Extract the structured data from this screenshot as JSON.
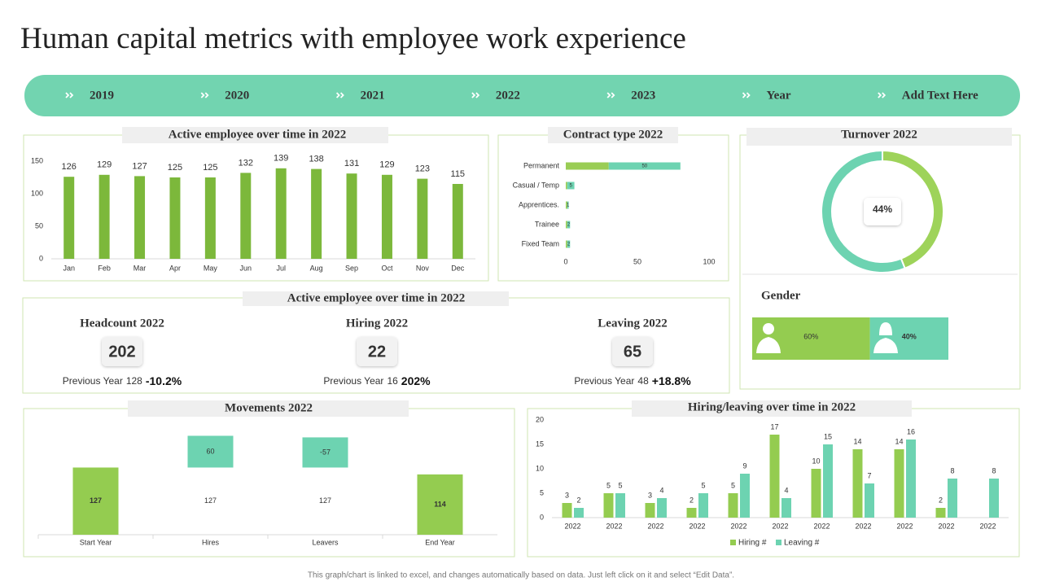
{
  "title": "Human capital metrics with employee work experience",
  "nav": [
    "2019",
    "2020",
    "2021",
    "2022",
    "2023",
    "Year",
    "Add Text Here"
  ],
  "chart_data": [
    {
      "type": "bar",
      "title": "Active employee over time in 2022",
      "categories": [
        "Jan",
        "Feb",
        "Mar",
        "Apr",
        "May",
        "Jun",
        "Jul",
        "Aug",
        "Sep",
        "Oct",
        "Nov",
        "Dec"
      ],
      "values": [
        126,
        129,
        127,
        125,
        125,
        132,
        139,
        138,
        131,
        129,
        123,
        115
      ],
      "color": "#7cb83b",
      "ylim": [
        0,
        150
      ],
      "yticks": [
        0,
        50,
        100,
        150
      ]
    },
    {
      "type": "hbar-stacked",
      "title": "Contract type 2022",
      "categories": [
        "Permanent",
        "Casual / Temp",
        "Apprentices.",
        "Trainee",
        "Fixed Team"
      ],
      "series": [
        {
          "color": "#9acd55",
          "values": [
            30,
            1,
            1,
            1,
            1
          ]
        },
        {
          "color": "#6dd3b1",
          "values": [
            50,
            5,
            1,
            2,
            2
          ]
        }
      ],
      "xlim": [
        0,
        100
      ],
      "xticks": [
        0,
        50,
        100
      ]
    },
    {
      "type": "donut",
      "title": "Turnover 2022",
      "values": [
        44,
        56
      ],
      "value_labels": [
        "44%",
        null
      ],
      "colors": [
        "#9ed35a",
        "#6dd3b1"
      ]
    },
    {
      "type": "bar-100",
      "title": "Gender",
      "series": [
        {
          "color": "#94cc50",
          "values": [
            60
          ],
          "value_labels": [
            "60%"
          ]
        },
        {
          "color": "#6dd3b1",
          "values": [
            40
          ],
          "value_labels": [
            "40%"
          ]
        }
      ],
      "xlim": [
        0,
        100
      ]
    },
    {
      "type": "waterfall",
      "title": "Movements 2022",
      "categories": [
        "Start Year",
        "Hires",
        "Leavers",
        "End Year"
      ],
      "values": [
        127,
        60,
        -57,
        114
      ],
      "base_values": [
        null,
        127,
        127,
        null
      ],
      "colors": [
        "#94cc50",
        "#6dd3b1",
        "#6dd3b1",
        "#94cc50"
      ],
      "ylim": [
        0,
        220
      ]
    },
    {
      "type": "grouped-bar",
      "title": "Hiring/leaving over time in 2022",
      "categories": [
        "2022",
        "2022",
        "2022",
        "2022",
        "2022",
        "2022",
        "2022",
        "2022",
        "2022",
        "2022",
        "2022"
      ],
      "series": [
        {
          "name": "Hiring #",
          "color": "#94cc50",
          "values": [
            3,
            5,
            3,
            2,
            5,
            17,
            10,
            14,
            14,
            2,
            null
          ]
        },
        {
          "name": "Leaving #",
          "color": "#6dd3b1",
          "values": [
            2,
            5,
            4,
            5,
            9,
            4,
            15,
            7,
            16,
            8,
            8
          ]
        }
      ],
      "ylim": [
        0,
        20
      ],
      "yticks": [
        0,
        5,
        10,
        15,
        20
      ],
      "legend": "bottom"
    }
  ],
  "kpis": {
    "title": "Active employee over time in 2022",
    "items": [
      {
        "label": "Headcount 2022",
        "value": 202,
        "previous_label": "Previous Year",
        "previous_value": 128,
        "change": "-10.2%"
      },
      {
        "label": "Hiring 2022",
        "value": 22,
        "previous_label": "Previous  Year",
        "previous_value": 16,
        "change": "202%"
      },
      {
        "label": "Leaving 2022",
        "value": 65,
        "previous_label": "Previous  Year",
        "previous_value": 48,
        "change": "+18.8%"
      }
    ]
  },
  "footer": "This graph/chart is linked to excel, and changes automatically based on data. Just left click on it and select “Edit Data”."
}
